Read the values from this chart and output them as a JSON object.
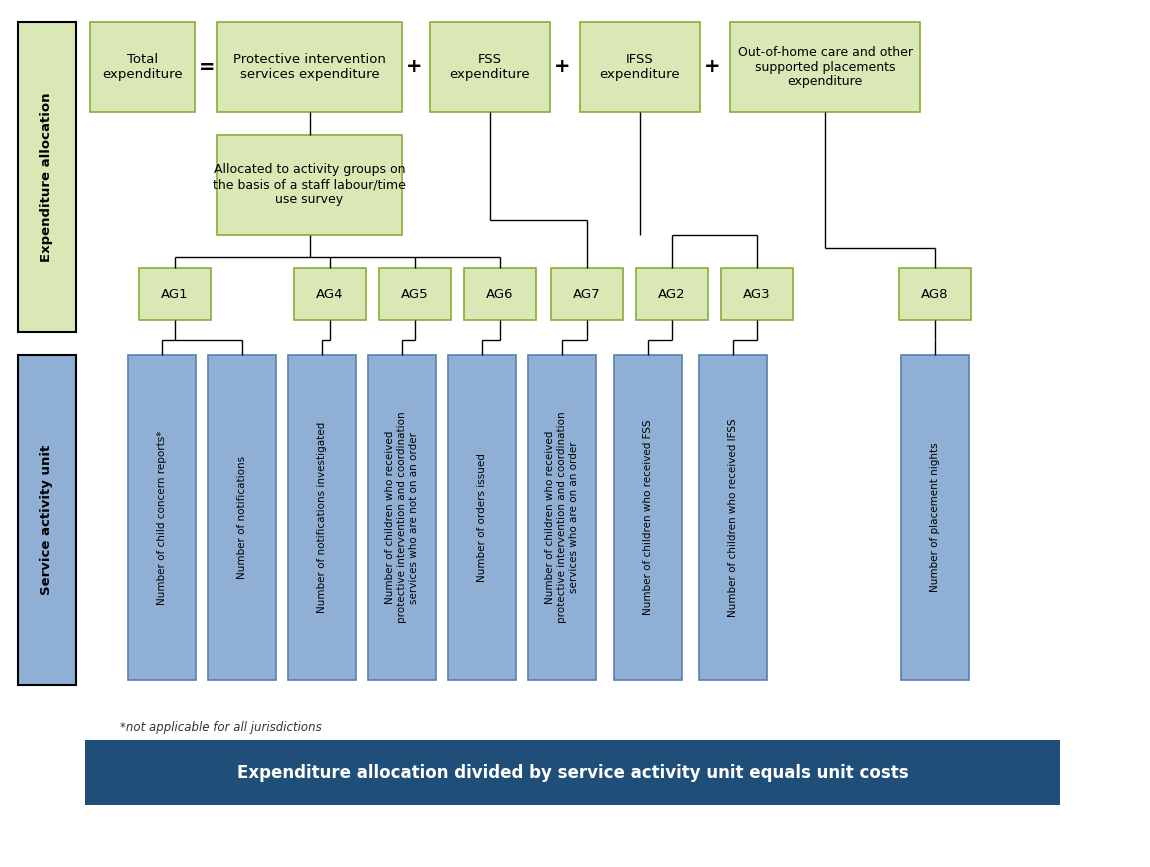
{
  "bg_color": "#ffffff",
  "green_box_fill": "#d9e8b4",
  "green_box_edge": "#8aac3a",
  "blue_box_fill": "#8fafd4",
  "blue_box_edge": "#5a7fb0",
  "dark_blue_fill": "#1f4e79",
  "bottom_bar_text": "Expenditure allocation divided by service activity unit equals unit costs",
  "footnote": "*not applicable for all jurisdictions",
  "expenditure_label": "Expenditure allocation",
  "service_label": "Service activity unit"
}
